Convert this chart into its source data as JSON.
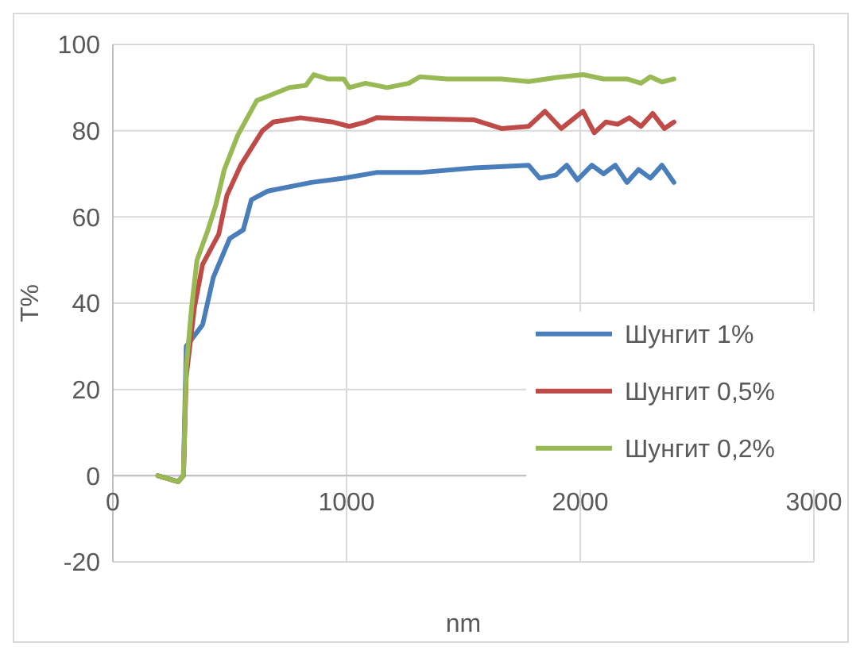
{
  "chart_data": {
    "type": "line",
    "xlabel": "nm",
    "ylabel": "T%",
    "xlim": [
      0,
      3000
    ],
    "xticks": [
      0,
      1000,
      2000,
      3000
    ],
    "ylim": [
      -20,
      100
    ],
    "yticks": [
      -20,
      0,
      20,
      40,
      60,
      80,
      100
    ],
    "grid": true,
    "legend": "right",
    "marker": "none",
    "line_style": "solid",
    "series": [
      {
        "name": "Шунгит 1%",
        "color": "#4a7ebb",
        "x": [
          193,
          279,
          302,
          314,
          384,
          430,
          500,
          558,
          593,
          663,
          849,
          988,
          1128,
          1314,
          1547,
          1779,
          1826,
          1895,
          1942,
          1988,
          2050,
          2100,
          2150,
          2200,
          2250,
          2300,
          2350,
          2401
        ],
        "values": [
          0,
          -1.4,
          0,
          30,
          35,
          46,
          55,
          57,
          64,
          66,
          68,
          69,
          70.3,
          70.3,
          71.4,
          72,
          69,
          69.7,
          72,
          68.6,
          72,
          70,
          72,
          68,
          71,
          69,
          72,
          68
        ]
      },
      {
        "name": "Шунгит 0,5%",
        "color": "#be4b48",
        "x": [
          193,
          279,
          302,
          314,
          349,
          384,
          453,
          488,
          547,
          640,
          686,
          802,
          942,
          1012,
          1081,
          1128,
          1547,
          1663,
          1779,
          1849,
          1919,
          2012,
          2060,
          2110,
          2160,
          2210,
          2260,
          2310,
          2360,
          2401
        ],
        "values": [
          0,
          -1.4,
          0,
          23,
          39,
          49,
          56,
          65,
          72,
          80,
          82,
          83,
          82,
          81,
          82,
          83,
          82.5,
          80.5,
          81,
          84.5,
          80.5,
          84.5,
          79.5,
          82,
          81.5,
          83,
          81,
          84,
          80.5,
          82
        ]
      },
      {
        "name": "Шунгит 0,2%",
        "color": "#98b954",
        "x": [
          193,
          279,
          302,
          314,
          337,
          360,
          407,
          442,
          477,
          535,
          616,
          663,
          756,
          826,
          860,
          919,
          988,
          1012,
          1081,
          1174,
          1267,
          1314,
          1430,
          1663,
          1779,
          1895,
          2012,
          2100,
          2200,
          2260,
          2300,
          2350,
          2401
        ],
        "values": [
          0,
          -1.4,
          0,
          25,
          39,
          50,
          57,
          63,
          71,
          79,
          87,
          88,
          90,
          90.5,
          93,
          92,
          92,
          90,
          91,
          90,
          91,
          92.5,
          92,
          92,
          91.4,
          92.3,
          93,
          92,
          92,
          91,
          92.5,
          91.3,
          92
        ]
      }
    ]
  }
}
